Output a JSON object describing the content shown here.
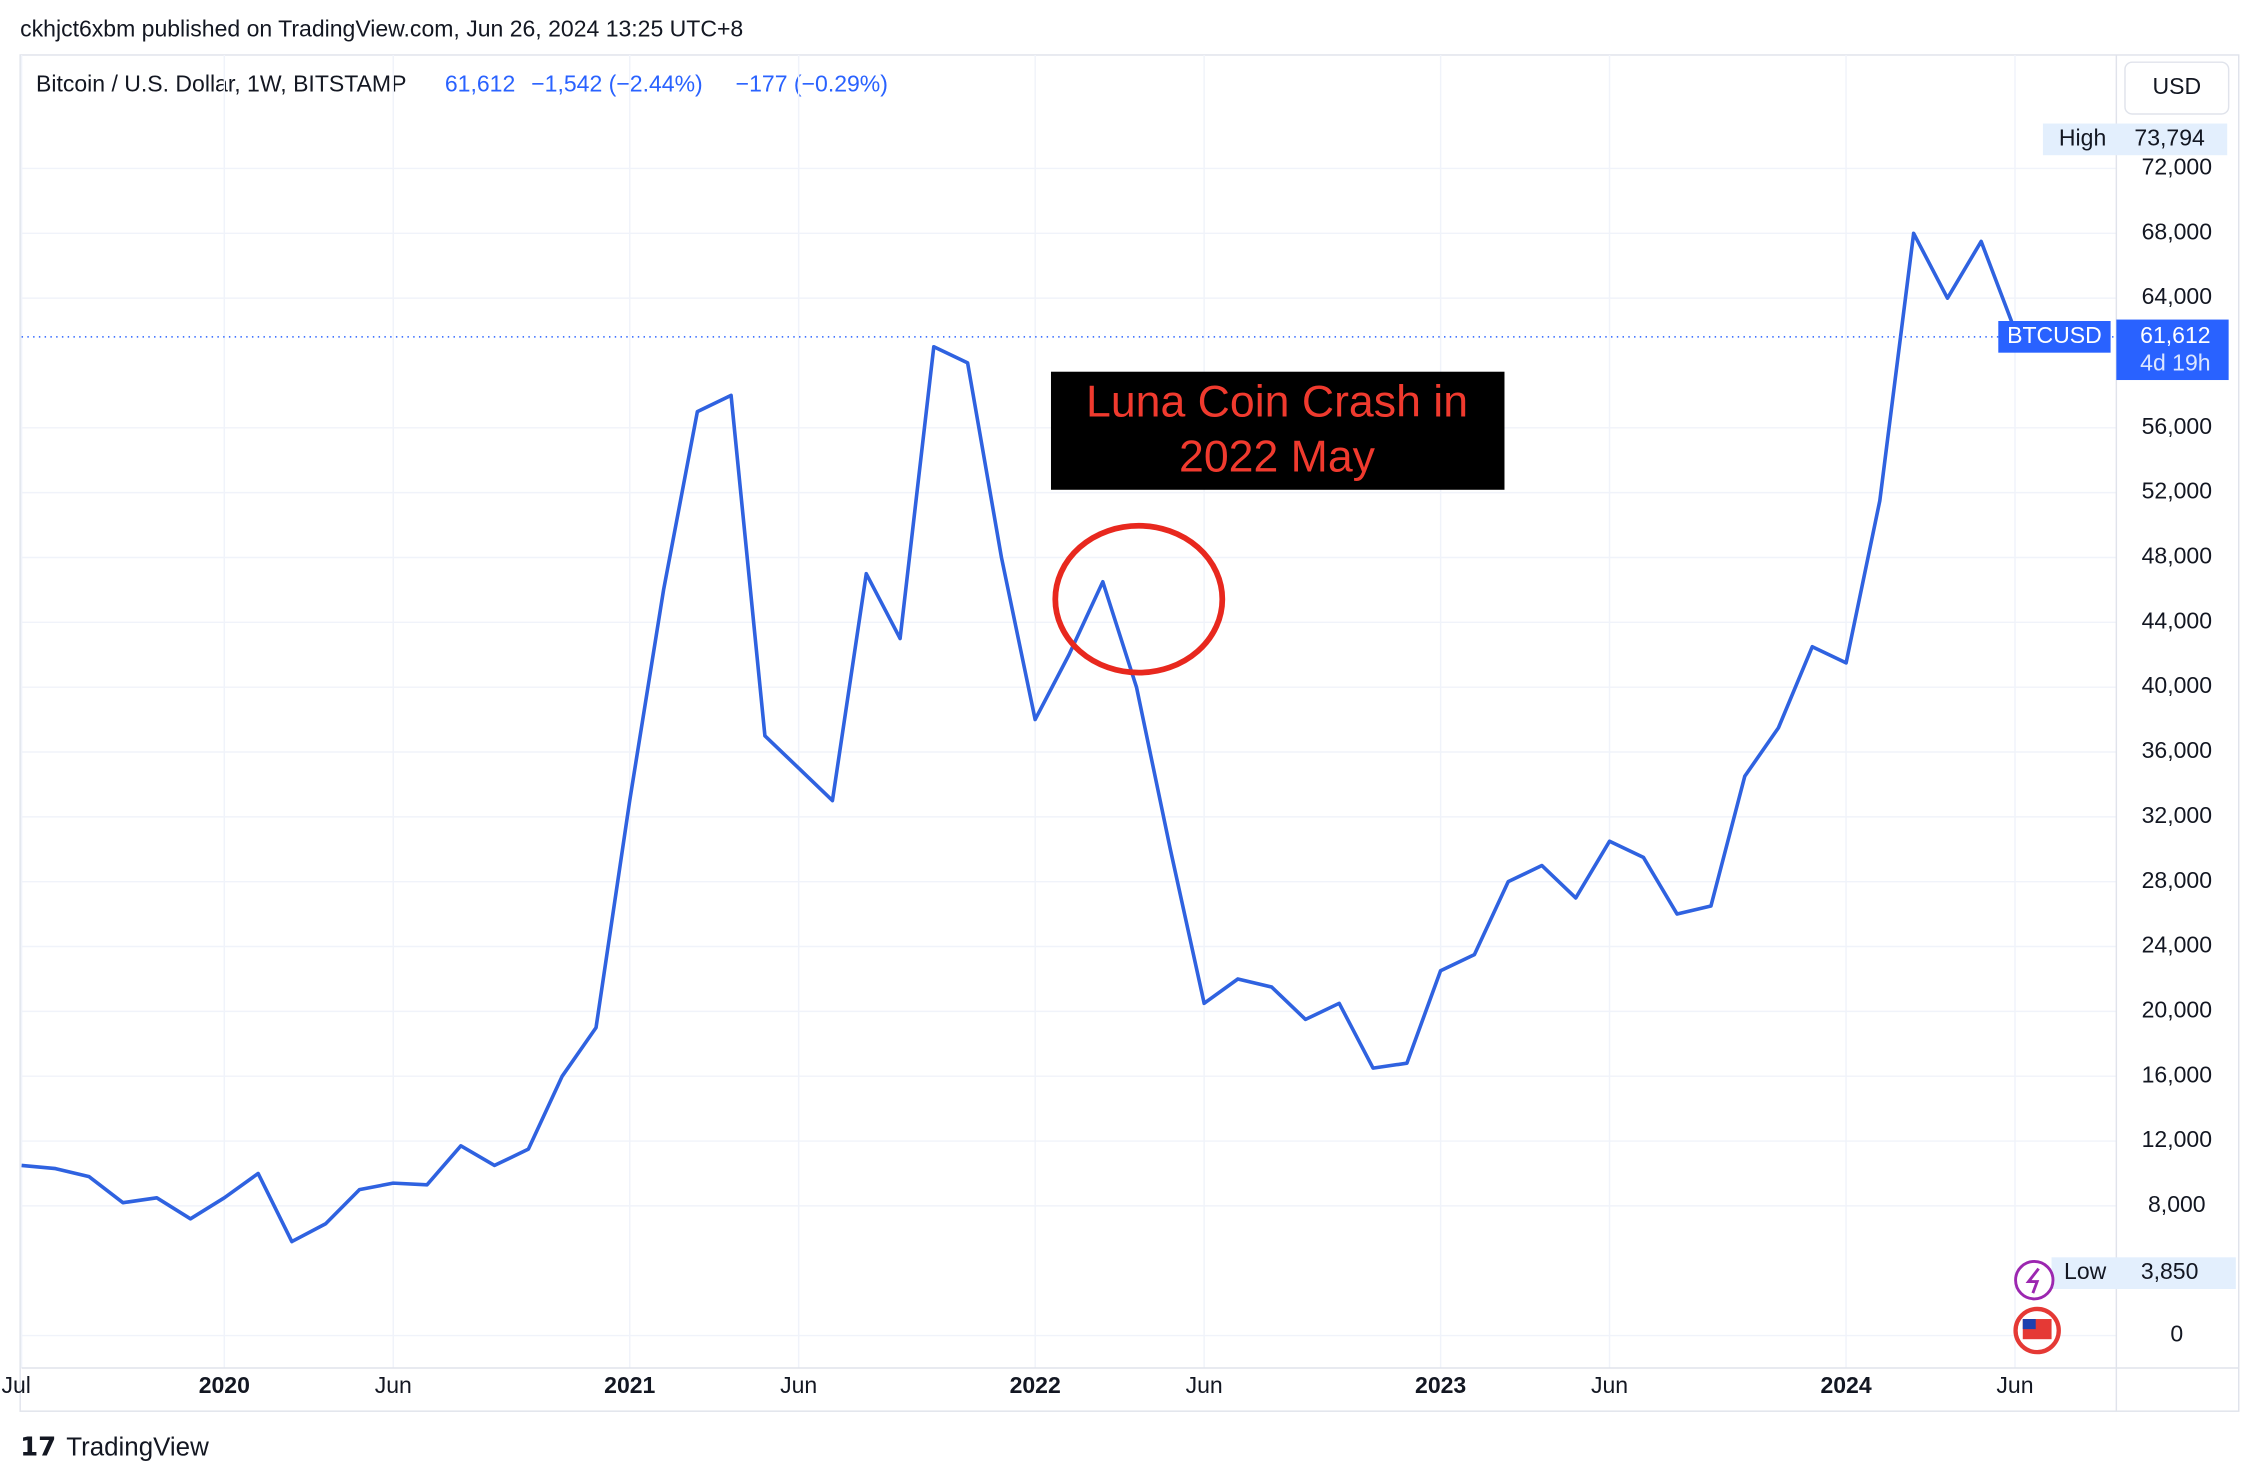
{
  "header": {
    "publisher": "ckhjct6xbm published on TradingView.com, Jun 26, 2024 13:25 UTC+8",
    "symbol": "Bitcoin / U.S. Dollar, 1W, BITSTAMP",
    "price": "61,612",
    "change": "−1,542 (−2.44%)",
    "change_ext": "−177 (−0.29%)",
    "currency": "USD"
  },
  "footer": {
    "brand": "TradingView"
  },
  "chart_data": {
    "type": "line",
    "color": "#2f62e0",
    "grid": true,
    "x": [
      "2019-07",
      "2019-08",
      "2019-09",
      "2019-10",
      "2019-11",
      "2019-12",
      "2020-01",
      "2020-02",
      "2020-03",
      "2020-04",
      "2020-05",
      "2020-06",
      "2020-07",
      "2020-08",
      "2020-09",
      "2020-10",
      "2020-11",
      "2020-12",
      "2021-01",
      "2021-02",
      "2021-03",
      "2021-04",
      "2021-05",
      "2021-06",
      "2021-07",
      "2021-08",
      "2021-09",
      "2021-10",
      "2021-11",
      "2021-12",
      "2022-01",
      "2022-02",
      "2022-03",
      "2022-04",
      "2022-05",
      "2022-06",
      "2022-07",
      "2022-08",
      "2022-09",
      "2022-10",
      "2022-11",
      "2022-12",
      "2023-01",
      "2023-02",
      "2023-03",
      "2023-04",
      "2023-05",
      "2023-06",
      "2023-07",
      "2023-08",
      "2023-09",
      "2023-10",
      "2023-11",
      "2023-12",
      "2024-01",
      "2024-02",
      "2024-03",
      "2024-04",
      "2024-05",
      "2024-06"
    ],
    "values": [
      10500,
      10300,
      9800,
      8200,
      8500,
      7200,
      8500,
      10000,
      5800,
      6900,
      9000,
      9400,
      9300,
      11700,
      10500,
      11500,
      16000,
      19000,
      33000,
      46000,
      57000,
      58000,
      37000,
      35000,
      33000,
      47000,
      43000,
      61000,
      60000,
      48000,
      38000,
      42000,
      46500,
      40000,
      30000,
      20500,
      22000,
      21500,
      19500,
      20500,
      16500,
      16800,
      22500,
      23500,
      28000,
      29000,
      27000,
      30500,
      29500,
      26000,
      26500,
      34500,
      37500,
      42500,
      41500,
      51500,
      68000,
      64000,
      67500,
      62000
    ],
    "xlim": [
      "2019-07",
      "2024-09"
    ],
    "xticks": [
      {
        "value": "2019-07",
        "label": "Jul"
      },
      {
        "value": "2020-01",
        "label": "2020"
      },
      {
        "value": "2020-06",
        "label": "Jun"
      },
      {
        "value": "2021-01",
        "label": "2021"
      },
      {
        "value": "2021-06",
        "label": "Jun"
      },
      {
        "value": "2022-01",
        "label": "2022"
      },
      {
        "value": "2022-06",
        "label": "Jun"
      },
      {
        "value": "2023-01",
        "label": "2023"
      },
      {
        "value": "2023-06",
        "label": "Jun"
      },
      {
        "value": "2024-01",
        "label": "2024"
      },
      {
        "value": "2024-06",
        "label": "Jun"
      }
    ],
    "ylim": [
      -2000,
      79000
    ],
    "yticks": [
      0,
      {
        "value": 8000,
        "label": "8,000"
      },
      {
        "value": 12000,
        "label": "12,000"
      },
      {
        "value": 16000,
        "label": "16,000"
      },
      {
        "value": 20000,
        "label": "20,000"
      },
      {
        "value": 24000,
        "label": "24,000"
      },
      {
        "value": 28000,
        "label": "28,000"
      },
      {
        "value": 32000,
        "label": "32,000"
      },
      {
        "value": 36000,
        "label": "36,000"
      },
      {
        "value": 40000,
        "label": "40,000"
      },
      {
        "value": 44000,
        "label": "44,000"
      },
      {
        "value": 48000,
        "label": "48,000"
      },
      {
        "value": 52000,
        "label": "52,000"
      },
      {
        "value": 56000,
        "label": "56,000"
      },
      {
        "value": 64000,
        "label": "64,000"
      },
      {
        "value": 68000,
        "label": "68,000"
      },
      {
        "value": 72000,
        "label": "72,000"
      }
    ],
    "high_label": "High",
    "high": {
      "value": 73794,
      "label": "73,794"
    },
    "low_label": "Low",
    "low": {
      "value": 3850,
      "label": "3,850"
    },
    "last": {
      "value": 61612,
      "label": "61,612"
    },
    "last_symbol": "BTCUSD",
    "last_countdown": "4d 19h",
    "annotation": [
      "Luna Coin Crash in",
      "2022 May"
    ]
  }
}
